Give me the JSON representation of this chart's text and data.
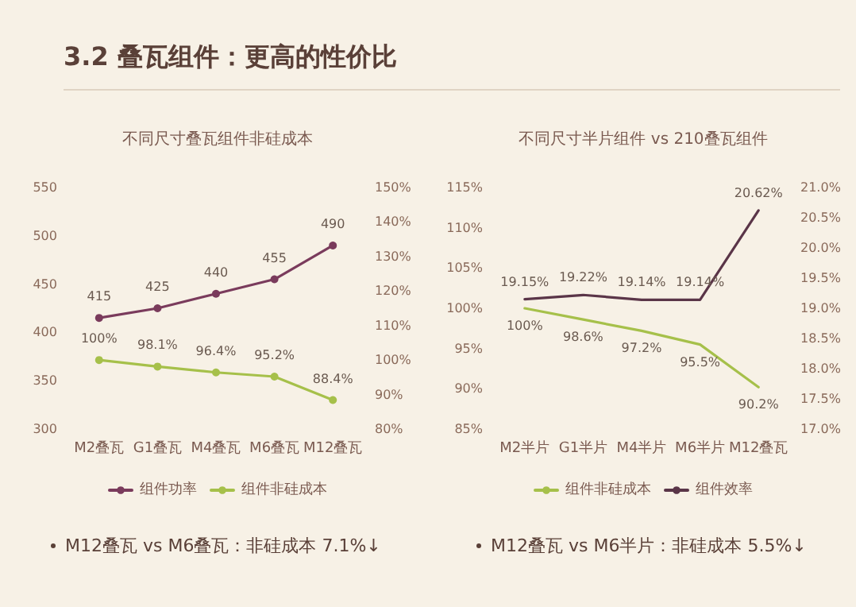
{
  "chart_data": [
    {
      "type": "line",
      "title": "不同尺寸叠瓦组件非硅成本",
      "categories": [
        "M2叠瓦",
        "G1叠瓦",
        "M4叠瓦",
        "M6叠瓦",
        "M12叠瓦"
      ],
      "series": [
        {
          "name": "组件功率",
          "color": "#7a3b5c",
          "values": [
            415,
            425,
            440,
            455,
            490
          ],
          "value_labels": [
            "415",
            "425",
            "440",
            "455",
            "490"
          ]
        },
        {
          "name": "组件非硅成本",
          "color": "#a6c04a",
          "axis": "y2",
          "values": [
            100,
            98.1,
            96.4,
            95.2,
            88.4
          ],
          "value_labels": [
            "100%",
            "98.1%",
            "96.4%",
            "95.2%",
            "88.4%"
          ]
        }
      ],
      "ylim": [
        300,
        550
      ],
      "yticks": [
        300,
        350,
        400,
        450,
        500,
        550
      ],
      "y2lim": [
        80,
        150
      ],
      "y2ticks": [
        {
          "value": 80,
          "label": "80%"
        },
        {
          "value": 90,
          "label": "90%"
        },
        {
          "value": 100,
          "label": "100%"
        },
        {
          "value": 110,
          "label": "110%"
        },
        {
          "value": 120,
          "label": "120%"
        },
        {
          "value": 130,
          "label": "130%"
        },
        {
          "value": 140,
          "label": "140%"
        },
        {
          "value": 150,
          "label": "150%"
        }
      ],
      "grid": false,
      "legend": "bottom",
      "marker": "circle",
      "line_style": "solid",
      "annotations": [
        "3.2 叠瓦组件：更高的性价比",
        "M12叠瓦 vs M6叠瓦：非硅成本 7.1%↓"
      ]
    },
    {
      "type": "line",
      "title": "不同尺寸半片组件 vs 210叠瓦组件",
      "categories": [
        "M2半片",
        "G1半片",
        "M4半片",
        "M6半片",
        "M12叠瓦"
      ],
      "series": [
        {
          "name": "组件非硅成本",
          "color": "#a6c04a",
          "values": [
            100,
            98.6,
            97.2,
            95.5,
            90.2
          ],
          "value_labels": [
            "100%",
            "98.6%",
            "97.2%",
            "95.5%",
            "90.2%"
          ]
        },
        {
          "name": "组件效率",
          "color": "#5a3548",
          "axis": "y2",
          "values": [
            19.15,
            19.22,
            19.14,
            19.14,
            20.62
          ],
          "value_labels": [
            "19.15%",
            "19.22%",
            "19.14%",
            "19.14%",
            "20.62%"
          ]
        }
      ],
      "ylim": [
        85,
        115
      ],
      "yticks": [
        {
          "value": 85,
          "label": "85%"
        },
        {
          "value": 90,
          "label": "90%"
        },
        {
          "value": 95,
          "label": "95%"
        },
        {
          "value": 100,
          "label": "100%"
        },
        {
          "value": 105,
          "label": "105%"
        },
        {
          "value": 110,
          "label": "110%"
        },
        {
          "value": 115,
          "label": "115%"
        }
      ],
      "y2lim": [
        17,
        21
      ],
      "y2ticks": [
        {
          "value": 17,
          "label": "17.0%"
        },
        {
          "value": 17.5,
          "label": "17.5%"
        },
        {
          "value": 18,
          "label": "18.0%"
        },
        {
          "value": 18.5,
          "label": "18.5%"
        },
        {
          "value": 19,
          "label": "19.0%"
        },
        {
          "value": 19.5,
          "label": "19.5%"
        },
        {
          "value": 20,
          "label": "20.0%"
        },
        {
          "value": 20.5,
          "label": "20.5%"
        },
        {
          "value": 21,
          "label": "21.0%"
        }
      ],
      "grid": false,
      "legend": "bottom",
      "marker": "none",
      "line_style": "solid",
      "annotations": [
        "M12叠瓦 vs M6半片：非硅成本 5.5%↓"
      ]
    }
  ]
}
